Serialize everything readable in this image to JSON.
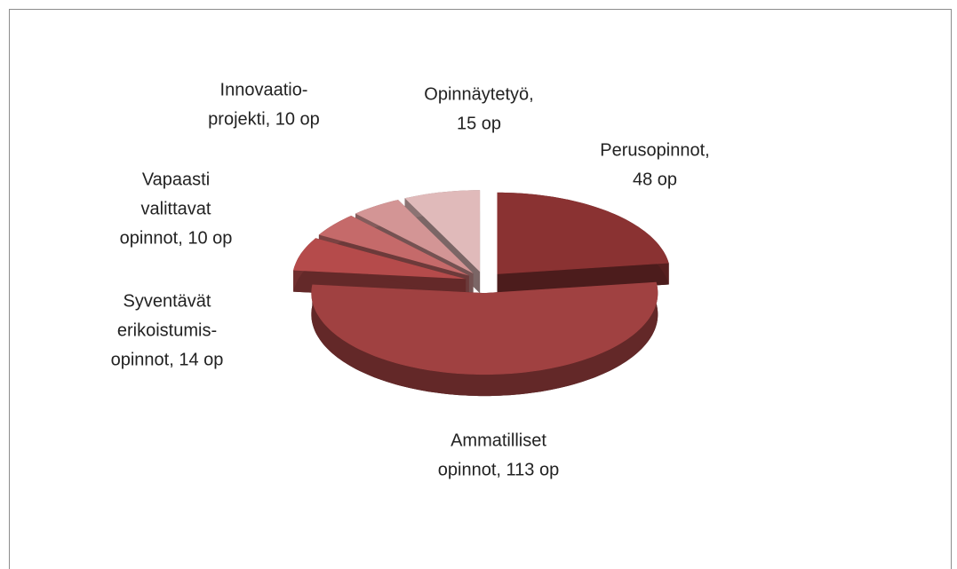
{
  "chart_data": {
    "type": "pie3d",
    "categories": [
      "Perusopinnot",
      "Ammatilliset opinnot",
      "Syventävät erikoistumisopinnot",
      "Vapaasti valittavat opinnot",
      "Innovaatioprojekti",
      "Opinnäytetyö"
    ],
    "values": [
      48,
      113,
      14,
      10,
      10,
      15
    ],
    "value_labels": [
      [
        "Perusopinnot,",
        "48 op"
      ],
      [
        "Ammatilliset",
        "opinnot, 113 op"
      ],
      [
        "Syventävät",
        "erikoistumis-",
        "opinnot, 14 op"
      ],
      [
        "Vapaasti",
        "valittavat",
        "opinnot, 10 op"
      ],
      [
        "Innovaatio-",
        "projekti, 10 op"
      ],
      [
        "Opinnäytetyö,",
        "15 op"
      ]
    ],
    "colors": [
      "#8a3232",
      "#a04141",
      "#b54b4b",
      "#c56a6a",
      "#d39595",
      "#e0baba"
    ]
  }
}
